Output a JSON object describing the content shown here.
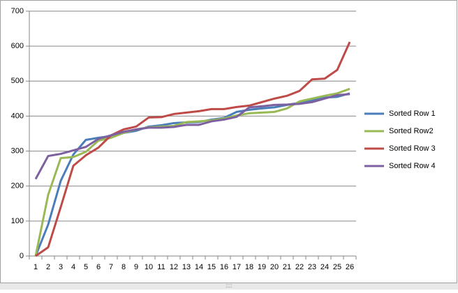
{
  "chart_data": {
    "type": "line",
    "categories": [
      "1",
      "2",
      "3",
      "4",
      "5",
      "6",
      "7",
      "8",
      "9",
      "10",
      "11",
      "12",
      "13",
      "14",
      "15",
      "16",
      "17",
      "18",
      "19",
      "20",
      "21",
      "22",
      "23",
      "24",
      "25",
      "26"
    ],
    "series": [
      {
        "name": "Sorted Row 1",
        "color": "#4a7ebb",
        "values": [
          0,
          90,
          215,
          290,
          332,
          338,
          343,
          352,
          358,
          370,
          374,
          380,
          382,
          383,
          390,
          395,
          412,
          418,
          422,
          425,
          432,
          438,
          445,
          453,
          455,
          465
        ]
      },
      {
        "name": "Sorted Row2",
        "color": "#98b954",
        "values": [
          0,
          175,
          280,
          283,
          298,
          330,
          338,
          352,
          362,
          368,
          370,
          372,
          383,
          385,
          388,
          393,
          402,
          408,
          410,
          412,
          422,
          442,
          450,
          458,
          465,
          478
        ]
      },
      {
        "name": "Sorted Row 3",
        "color": "#be4b48",
        "values": [
          0,
          25,
          140,
          258,
          288,
          310,
          345,
          362,
          370,
          396,
          397,
          406,
          410,
          414,
          420,
          420,
          426,
          430,
          440,
          450,
          458,
          472,
          505,
          507,
          532,
          612
        ]
      },
      {
        "name": "Sorted Row 4",
        "color": "#7d60a0",
        "values": [
          220,
          286,
          292,
          302,
          312,
          335,
          345,
          355,
          362,
          367,
          367,
          369,
          375,
          375,
          385,
          390,
          398,
          425,
          428,
          432,
          433,
          435,
          440,
          450,
          460,
          463
        ]
      }
    ],
    "ylim": [
      0,
      700
    ],
    "yticks": [
      0,
      100,
      200,
      300,
      400,
      500,
      600,
      700
    ],
    "grid": true,
    "legend": "right"
  }
}
